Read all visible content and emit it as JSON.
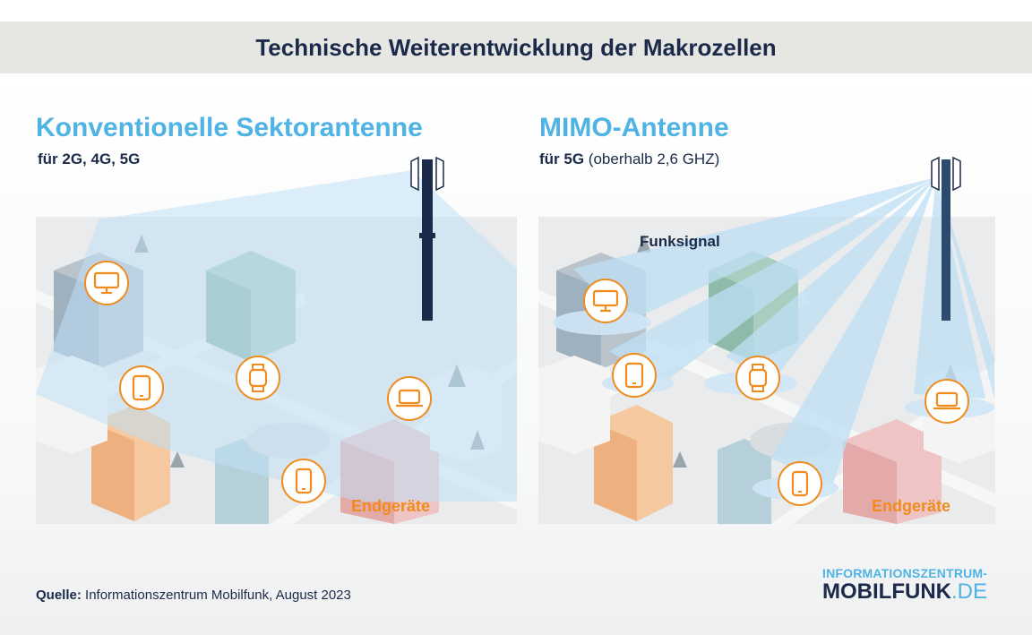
{
  "title": "Technische Weiterentwicklung der Makrozellen",
  "left_panel": {
    "heading": "Konventionelle Sektorantenne",
    "sub_bold": "für 2G, 4G, 5G",
    "sub_rest": "",
    "endgeraete_label": "Endgeräte",
    "devices": [
      "monitor-icon",
      "tablet-icon",
      "smartwatch-icon",
      "laptop-icon",
      "smartphone-icon"
    ]
  },
  "right_panel": {
    "heading": "MIMO-Antenne",
    "sub_bold": "für 5G",
    "sub_rest": "(oberhalb 2,6 GHZ)",
    "funksignal_label": "Funksignal",
    "endgeraete_label": "Endgeräte",
    "devices": [
      "monitor-icon",
      "tablet-icon",
      "smartwatch-icon",
      "laptop-icon",
      "smartphone-icon"
    ]
  },
  "source": {
    "label": "Quelle:",
    "text": "Informationszentrum Mobilfunk, August 2023"
  },
  "logo": {
    "line1": "INFORMATIONSZENTRUM-",
    "line2_main": "MOBILFUNK",
    "line2_suffix": ".DE"
  },
  "colors": {
    "title_text": "#1b2a4a",
    "heading_blue": "#4fb3e3",
    "device_orange": "#f08c1e",
    "signal_blue": "#cfe8f7",
    "mast_navy": "#1b2a4a"
  }
}
